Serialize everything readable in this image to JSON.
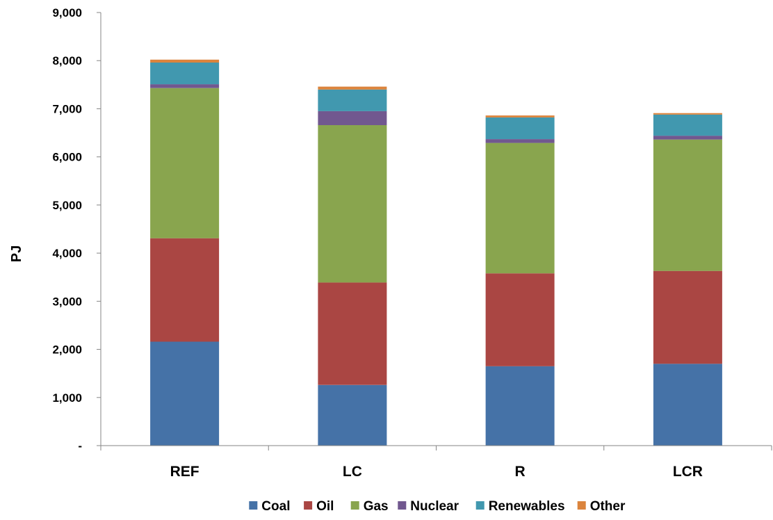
{
  "chart_data": {
    "type": "bar",
    "stacked": true,
    "title": "",
    "xlabel": "",
    "ylabel": "PJ",
    "ylim": [
      0,
      9000
    ],
    "y_ticks": [
      {
        "value": 0,
        "label": "-"
      },
      {
        "value": 1000,
        "label": "1,000"
      },
      {
        "value": 2000,
        "label": "2,000"
      },
      {
        "value": 3000,
        "label": "3,000"
      },
      {
        "value": 4000,
        "label": "4,000"
      },
      {
        "value": 5000,
        "label": "5,000"
      },
      {
        "value": 6000,
        "label": "6,000"
      },
      {
        "value": 7000,
        "label": "7,000"
      },
      {
        "value": 8000,
        "label": "8,000"
      },
      {
        "value": 9000,
        "label": "9,000"
      }
    ],
    "grid": false,
    "legend_position": "bottom",
    "categories": [
      "REF",
      "LC",
      "R",
      "LCR"
    ],
    "series": [
      {
        "name": "Coal",
        "color": "#4572A7",
        "values": [
          2160,
          1260,
          1650,
          1700
        ]
      },
      {
        "name": "Oil",
        "color": "#AA4643",
        "values": [
          2150,
          2130,
          1930,
          1930
        ]
      },
      {
        "name": "Gas",
        "color": "#89A54E",
        "values": [
          3120,
          3270,
          2710,
          2730
        ]
      },
      {
        "name": "Nuclear",
        "color": "#71588F",
        "values": [
          80,
          290,
          80,
          80
        ]
      },
      {
        "name": "Renewables",
        "color": "#4198AF",
        "values": [
          450,
          450,
          450,
          440
        ]
      },
      {
        "name": "Other",
        "color": "#DB843D",
        "values": [
          60,
          60,
          40,
          30
        ]
      }
    ]
  }
}
